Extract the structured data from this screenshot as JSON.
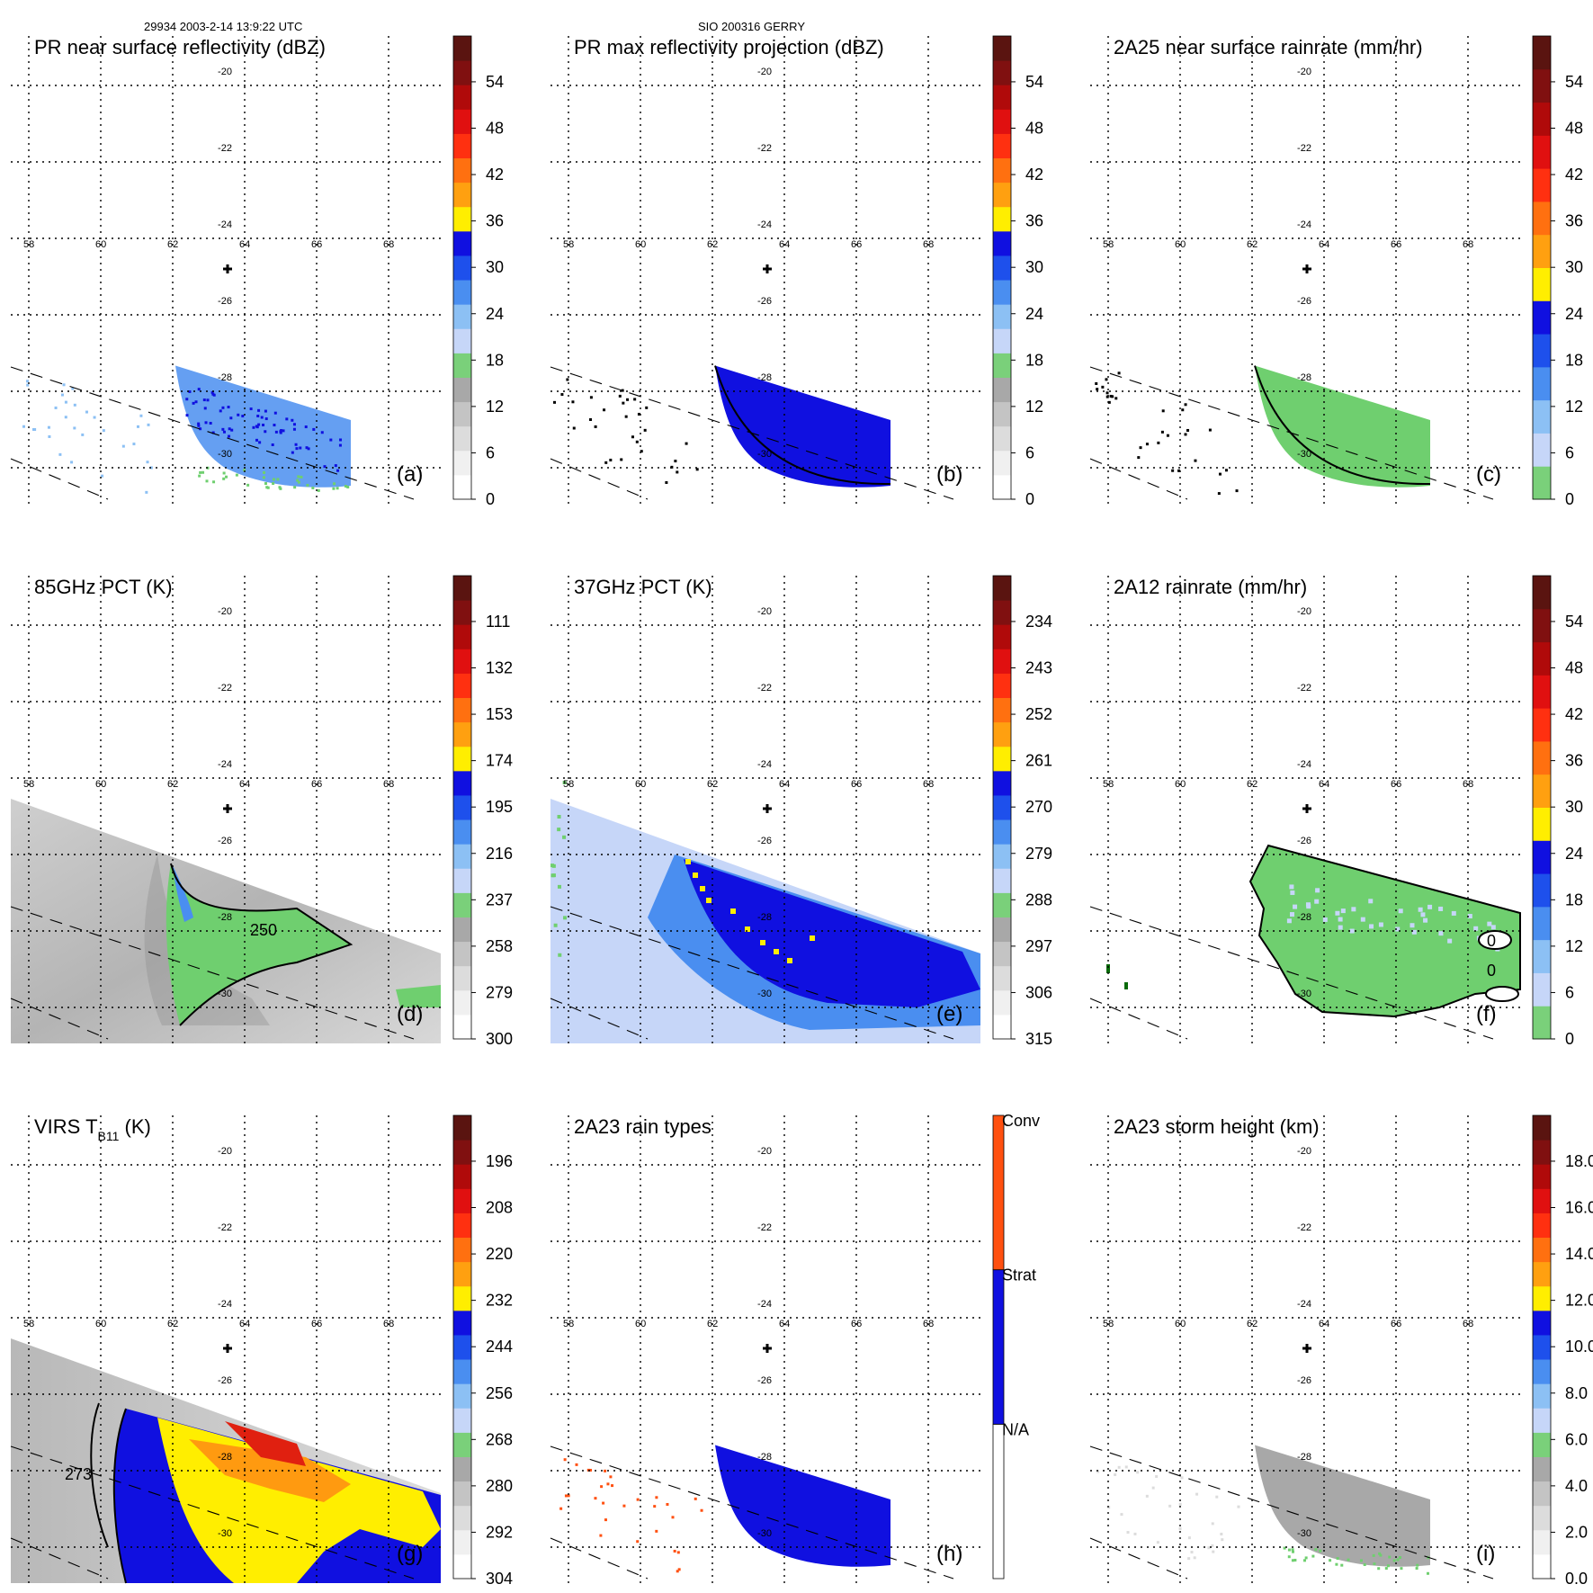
{
  "header": {
    "left": "29934 2003-2-14 13:9:22 UTC",
    "center": "SIO 200316 GERRY"
  },
  "grid": {
    "lon_ticks": [
      "58",
      "60",
      "62",
      "64",
      "66",
      "68"
    ],
    "lat_ticks": [
      "-20",
      "-22",
      "-24",
      "-26",
      "-28",
      "-30"
    ]
  },
  "colors": {
    "green": "#6fcf6f",
    "blue": "#1010e0",
    "yellow": "#ffee00",
    "orange": "#ff9a10",
    "red": "#e02010",
    "gray": "#a8a8a8",
    "lightblue": "#8cc0f4"
  },
  "chart_data": [
    {
      "id": "a",
      "type": "heatmap",
      "title": "PR near surface reflectivity (dBZ)",
      "label": "(a)",
      "colorbar": {
        "ticks": [
          "0",
          "6",
          "12",
          "18",
          "24",
          "30",
          "36",
          "42",
          "48",
          "54"
        ],
        "colors": [
          "#ffffff",
          "#f0f0f0",
          "#dcdcdc",
          "#c4c4c4",
          "#a8a8a8",
          "#7ad07a",
          "#c6d6f8",
          "#8cc0f4",
          "#4a8ef0",
          "#1e50ec",
          "#1010e0",
          "#ffee00",
          "#ffa010",
          "#ff7010",
          "#ff3010",
          "#e01010",
          "#b00a0a",
          "#801010",
          "#5a1410"
        ]
      }
    },
    {
      "id": "b",
      "type": "heatmap",
      "title": "PR max reflectivity projection (dBZ)",
      "label": "(b)",
      "colorbar": {
        "ticks": [
          "0",
          "6",
          "12",
          "18",
          "24",
          "30",
          "36",
          "42",
          "48",
          "54"
        ],
        "colors": [
          "#ffffff",
          "#f0f0f0",
          "#dcdcdc",
          "#c4c4c4",
          "#a8a8a8",
          "#7ad07a",
          "#c6d6f8",
          "#8cc0f4",
          "#4a8ef0",
          "#1e50ec",
          "#1010e0",
          "#ffee00",
          "#ffa010",
          "#ff7010",
          "#ff3010",
          "#e01010",
          "#b00a0a",
          "#801010",
          "#5a1410"
        ]
      }
    },
    {
      "id": "c",
      "type": "heatmap",
      "title": "2A25 near surface rainrate (mm/hr)",
      "label": "(c)",
      "colorbar": {
        "ticks": [
          "0",
          "6",
          "12",
          "18",
          "24",
          "30",
          "36",
          "42",
          "48",
          "54"
        ],
        "colors": [
          "#7ad07a",
          "#c6d6f8",
          "#8cc0f4",
          "#4a8ef0",
          "#1e50ec",
          "#1010e0",
          "#ffee00",
          "#ffa010",
          "#ff7010",
          "#ff3010",
          "#e01010",
          "#b00a0a",
          "#801010",
          "#5a1410"
        ]
      }
    },
    {
      "id": "d",
      "type": "heatmap",
      "title": "85GHz PCT (K)",
      "label": "(d)",
      "contour_label": "250",
      "colorbar": {
        "ticks": [
          "300",
          "279",
          "258",
          "237",
          "216",
          "195",
          "174",
          "153",
          "132",
          "111"
        ],
        "colors": [
          "#ffffff",
          "#f0f0f0",
          "#dcdcdc",
          "#c4c4c4",
          "#a8a8a8",
          "#7ad07a",
          "#c6d6f8",
          "#8cc0f4",
          "#4a8ef0",
          "#1e50ec",
          "#1010e0",
          "#ffee00",
          "#ffa010",
          "#ff7010",
          "#ff3010",
          "#e01010",
          "#b00a0a",
          "#801010",
          "#5a1410"
        ]
      }
    },
    {
      "id": "e",
      "type": "heatmap",
      "title": "37GHz PCT (K)",
      "label": "(e)",
      "colorbar": {
        "ticks": [
          "315",
          "306",
          "297",
          "288",
          "279",
          "270",
          "261",
          "252",
          "243",
          "234"
        ],
        "colors": [
          "#ffffff",
          "#f0f0f0",
          "#dcdcdc",
          "#c4c4c4",
          "#a8a8a8",
          "#7ad07a",
          "#c6d6f8",
          "#8cc0f4",
          "#4a8ef0",
          "#1e50ec",
          "#1010e0",
          "#ffee00",
          "#ffa010",
          "#ff7010",
          "#ff3010",
          "#e01010",
          "#b00a0a",
          "#801010",
          "#5a1410"
        ]
      }
    },
    {
      "id": "f",
      "type": "heatmap",
      "title": "2A12 rainrate (mm/hr)",
      "label": "(f)",
      "contour_label": "0",
      "colorbar": {
        "ticks": [
          "0",
          "6",
          "12",
          "18",
          "24",
          "30",
          "36",
          "42",
          "48",
          "54"
        ],
        "colors": [
          "#7ad07a",
          "#c6d6f8",
          "#8cc0f4",
          "#4a8ef0",
          "#1e50ec",
          "#1010e0",
          "#ffee00",
          "#ffa010",
          "#ff7010",
          "#ff3010",
          "#e01010",
          "#b00a0a",
          "#801010",
          "#5a1410"
        ]
      }
    },
    {
      "id": "g",
      "type": "heatmap",
      "title": "VIRS T",
      "title_sub": "B11",
      "title_unit": " (K)",
      "label": "(g)",
      "contour_label": "273",
      "colorbar": {
        "ticks": [
          "304",
          "292",
          "280",
          "268",
          "256",
          "244",
          "232",
          "220",
          "208",
          "196"
        ],
        "colors": [
          "#ffffff",
          "#f0f0f0",
          "#dcdcdc",
          "#c4c4c4",
          "#a8a8a8",
          "#7ad07a",
          "#c6d6f8",
          "#8cc0f4",
          "#4a8ef0",
          "#1e50ec",
          "#1010e0",
          "#ffee00",
          "#ffa010",
          "#ff7010",
          "#ff3010",
          "#e01010",
          "#b00a0a",
          "#801010",
          "#5a1410"
        ]
      }
    },
    {
      "id": "h",
      "type": "heatmap",
      "title": "2A23 rain types",
      "label": "(h)",
      "colorbar": {
        "categorical": true,
        "ticks": [
          "N/A",
          "Strat",
          "Conv"
        ],
        "colors": [
          "#ffffff",
          "#1010e0",
          "#ff5010"
        ]
      }
    },
    {
      "id": "i",
      "type": "heatmap",
      "title": "2A23 storm height (km)",
      "label": "(i)",
      "colorbar": {
        "ticks": [
          "0.0",
          "2.0",
          "4.0",
          "6.0",
          "8.0",
          "10.0",
          "12.0",
          "14.0",
          "16.0",
          "18.0"
        ],
        "colors": [
          "#ffffff",
          "#f0f0f0",
          "#dcdcdc",
          "#c4c4c4",
          "#a8a8a8",
          "#7ad07a",
          "#c6d6f8",
          "#8cc0f4",
          "#4a8ef0",
          "#1e50ec",
          "#1010e0",
          "#ffee00",
          "#ffa010",
          "#ff7010",
          "#ff3010",
          "#e01010",
          "#b00a0a",
          "#801010",
          "#5a1410"
        ]
      }
    }
  ]
}
